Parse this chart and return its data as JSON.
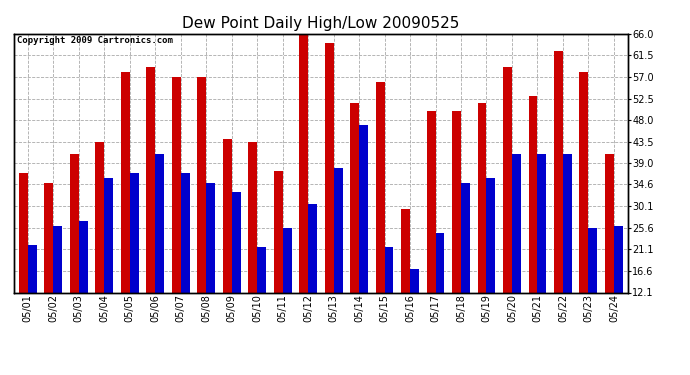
{
  "title": "Dew Point Daily High/Low 20090525",
  "copyright": "Copyright 2009 Cartronics.com",
  "dates": [
    "05/01",
    "05/02",
    "05/03",
    "05/04",
    "05/05",
    "05/06",
    "05/07",
    "05/08",
    "05/09",
    "05/10",
    "05/11",
    "05/12",
    "05/13",
    "05/14",
    "05/15",
    "05/16",
    "05/17",
    "05/18",
    "05/19",
    "05/20",
    "05/21",
    "05/22",
    "05/23",
    "05/24"
  ],
  "highs": [
    37.0,
    35.0,
    41.0,
    43.5,
    58.0,
    59.0,
    57.0,
    57.0,
    44.0,
    43.5,
    37.5,
    66.0,
    64.0,
    51.5,
    56.0,
    29.5,
    50.0,
    50.0,
    51.5,
    59.0,
    53.0,
    62.5,
    58.0,
    41.0
  ],
  "lows": [
    22.0,
    26.0,
    27.0,
    36.0,
    37.0,
    41.0,
    37.0,
    35.0,
    33.0,
    21.5,
    25.5,
    30.5,
    38.0,
    47.0,
    21.5,
    17.0,
    24.5,
    35.0,
    36.0,
    41.0,
    41.0,
    41.0,
    25.5,
    26.0
  ],
  "bar_color_high": "#cc0000",
  "bar_color_low": "#0000cc",
  "bg_color": "#ffffff",
  "plot_bg_color": "#ffffff",
  "grid_color": "#aaaaaa",
  "ylim_min": 12.1,
  "ylim_max": 66.0,
  "yticks": [
    12.1,
    16.6,
    21.1,
    25.6,
    30.1,
    34.6,
    39.0,
    43.5,
    48.0,
    52.5,
    57.0,
    61.5,
    66.0
  ],
  "bar_width": 0.35,
  "title_fontsize": 11,
  "copyright_fontsize": 6.5,
  "tick_fontsize": 7,
  "figwidth": 6.9,
  "figheight": 3.75,
  "dpi": 100
}
